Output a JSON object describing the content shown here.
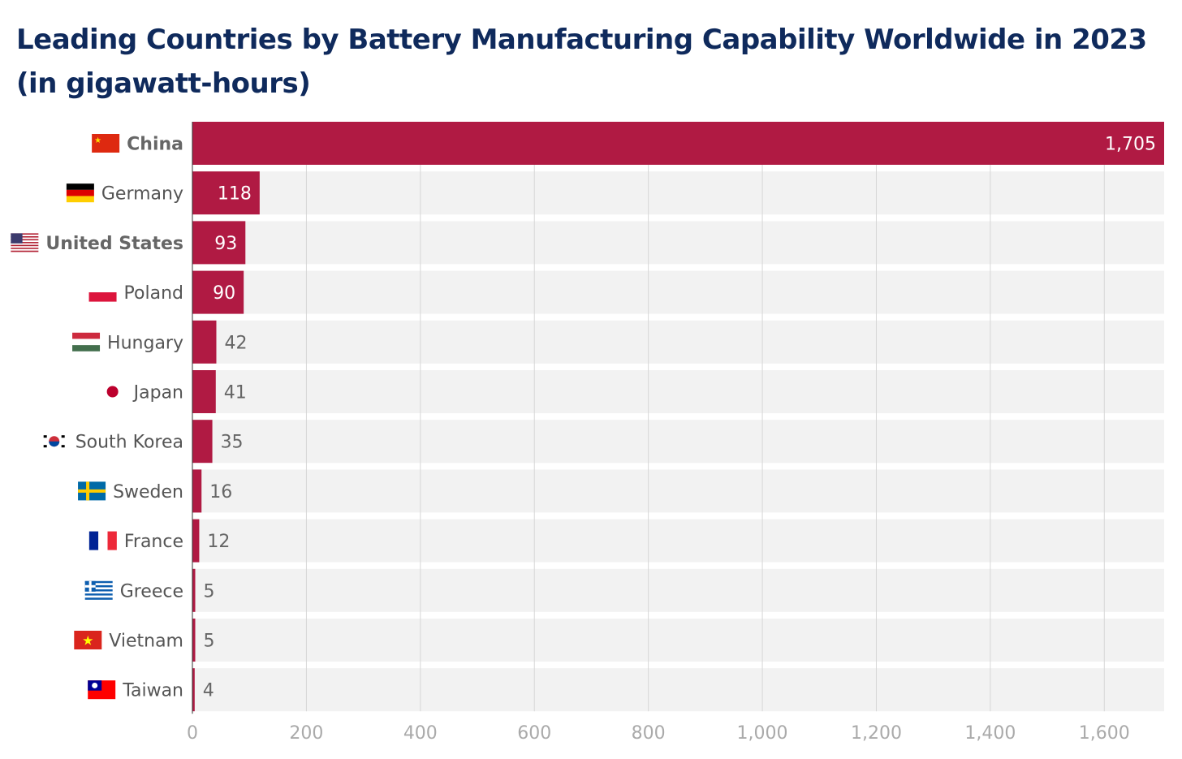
{
  "chart_data": {
    "type": "bar",
    "orientation": "horizontal",
    "title": "Leading Countries by Battery Manufacturing Capability Worldwide in 2023",
    "subtitle": "(in gigawatt-hours)",
    "categories": [
      "China",
      "Germany",
      "United States",
      "Poland",
      "Hungary",
      "Japan",
      "South Korea",
      "Sweden",
      "France",
      "Greece",
      "Vietnam",
      "Taiwan"
    ],
    "values": [
      1705,
      118,
      93,
      90,
      42,
      41,
      35,
      16,
      12,
      5,
      5,
      4
    ],
    "value_labels": [
      "1,705",
      "118",
      "93",
      "90",
      "42",
      "41",
      "35",
      "16",
      "12",
      "5",
      "5",
      "4"
    ],
    "bold_categories": [
      "China",
      "United States"
    ],
    "flags": [
      "china-flag",
      "germany-flag",
      "united-states-flag",
      "poland-flag",
      "hungary-flag",
      "japan-flag",
      "south-korea-flag",
      "sweden-flag",
      "france-flag",
      "greece-flag",
      "vietnam-flag",
      "taiwan-flag"
    ],
    "xlim": [
      0,
      1705
    ],
    "ticks": [
      0,
      200,
      400,
      600,
      800,
      1000,
      1200,
      1400,
      1600
    ],
    "tick_labels": [
      "0",
      "200",
      "400",
      "600",
      "800",
      "1,000",
      "1,200",
      "1,400",
      "1,600"
    ],
    "grid": true,
    "colors": {
      "bar": "#b01a43",
      "track": "#f2f2f2",
      "title": "#0f2a5c",
      "grid": "#d6d6d6"
    }
  }
}
